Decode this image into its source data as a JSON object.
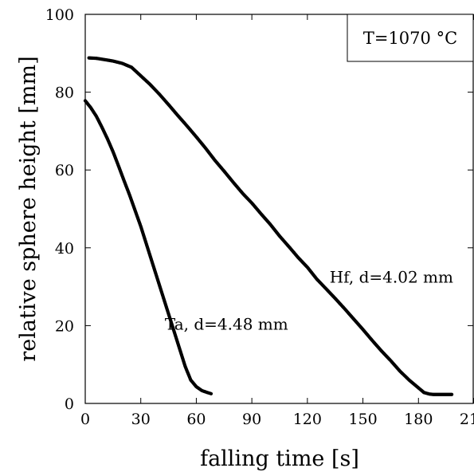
{
  "chart_data": {
    "type": "scatter",
    "xlabel": "falling time [s]",
    "ylabel": "relative sphere height [mm]",
    "xlim": [
      0,
      210
    ],
    "ylim": [
      0,
      100
    ],
    "xticks": [
      0,
      30,
      60,
      90,
      120,
      150,
      180,
      210
    ],
    "yticks": [
      0,
      20,
      40,
      60,
      80,
      100
    ],
    "grid": false,
    "legend": "none",
    "annotation_box": "T=1070 °C",
    "series": [
      {
        "name": "Ta, d=4.48 mm",
        "x": [
          0,
          3,
          6,
          9,
          12,
          15,
          18,
          21,
          24,
          27,
          30,
          33,
          36,
          39,
          42,
          45,
          48,
          51,
          54,
          57,
          60,
          63,
          66,
          68
        ],
        "y": [
          77.8,
          76,
          73.8,
          71,
          68,
          64.7,
          61,
          57.2,
          53.5,
          49.5,
          45.5,
          41,
          36.5,
          32,
          27.5,
          23,
          18.5,
          14,
          9.5,
          6,
          4.3,
          3.3,
          2.8,
          2.5
        ]
      },
      {
        "name": "Hf, d=4.02 mm",
        "x": [
          2,
          6,
          10,
          15,
          20,
          25,
          30,
          35,
          40,
          45,
          50,
          55,
          60,
          65,
          70,
          75,
          80,
          85,
          90,
          95,
          100,
          105,
          110,
          115,
          120,
          125,
          130,
          135,
          140,
          145,
          150,
          155,
          160,
          165,
          170,
          175,
          180,
          183,
          186,
          188,
          192,
          196,
          198
        ],
        "y": [
          88.8,
          88.7,
          88.4,
          88,
          87.4,
          86.4,
          84.2,
          82,
          79.5,
          76.8,
          74,
          71.3,
          68.5,
          65.6,
          62.5,
          59.7,
          56.8,
          54,
          51.5,
          48.7,
          46,
          43,
          40.3,
          37.5,
          35,
          32,
          29.5,
          27,
          24.4,
          21.7,
          19,
          16.2,
          13.5,
          11,
          8.3,
          6,
          4,
          2.8,
          2.4,
          2.3,
          2.3,
          2.3,
          2.3
        ]
      }
    ],
    "series_labels": [
      {
        "text": "Ta, d=4.48 mm",
        "x": 43,
        "y": 19
      },
      {
        "text": "Hf, d=4.02 mm",
        "x": 132,
        "y": 31
      }
    ]
  }
}
